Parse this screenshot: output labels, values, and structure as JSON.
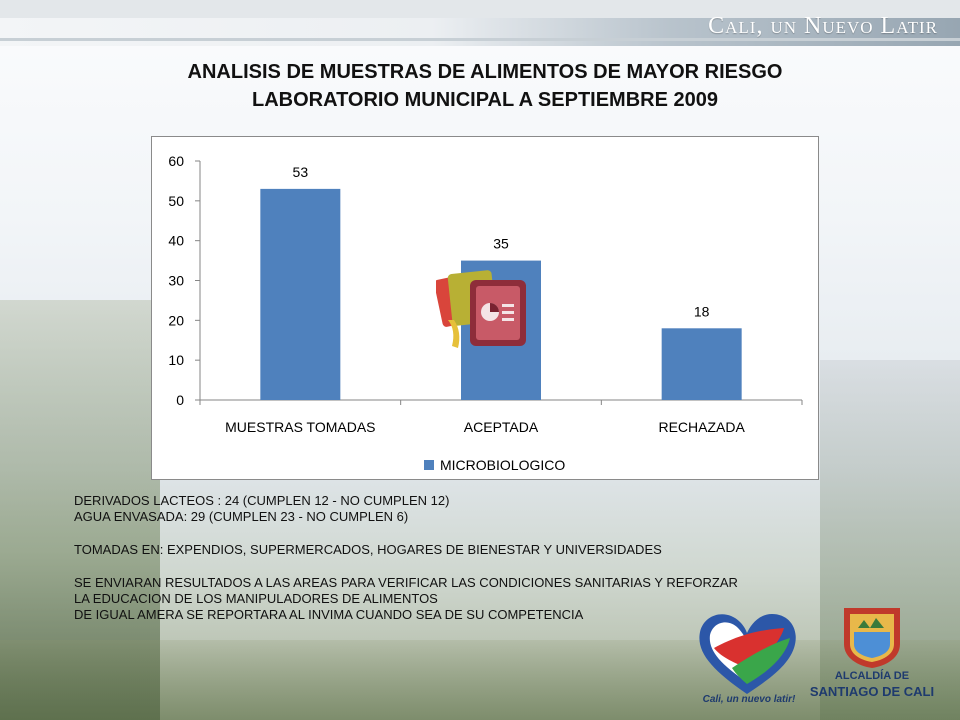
{
  "header": {
    "brand_text": "Cali, un Nuevo Latir"
  },
  "title": {
    "line1": "ANALISIS DE MUESTRAS DE ALIMENTOS DE MAYOR RIESGO",
    "line2": "LABORATORIO MUNICIPAL A SEPTIEMBRE 2009"
  },
  "chart_data": {
    "type": "bar",
    "categories": [
      "MUESTRAS TOMADAS",
      "ACEPTADA",
      "RECHAZADA"
    ],
    "series": [
      {
        "name": "MICROBIOLOGICO",
        "values": [
          53,
          35,
          18
        ],
        "color": "#4f81bd"
      }
    ],
    "ylim": [
      0,
      60
    ],
    "yticks": [
      0,
      10,
      20,
      30,
      40,
      50,
      60
    ],
    "grid": false,
    "legend": "bottom",
    "data_labels": true
  },
  "notes": [
    "DERIVADOS LACTEOS : 24 (CUMPLEN 12 - NO CUMPLEN  12)",
    "AGUA  ENVASADA: 29 (CUMPLEN 23 - NO CUMPLEN  6)",
    "",
    "TOMADAS EN: EXPENDIOS, SUPERMERCADOS, HOGARES DE BIENESTAR Y UNIVERSIDADES",
    "",
    "SE ENVIARAN RESULTADOS A LAS AREAS PARA VERIFICAR LAS CONDICIONES SANITARIAS Y REFORZAR",
    "LA EDUCACION DE LOS MANIPULADORES DE ALIMENTOS",
    "DE IGUAL AMERA SE REPORTARA AL INVIMA CUANDO SEA DE SU COMPETENCIA"
  ],
  "logos": {
    "heart_caption": "Cali, un nuevo latir!",
    "crest_line1": "ALCALDÍA DE",
    "crest_line2": "SANTIAGO DE CALI"
  },
  "colors": {
    "bar": "#4f81bd",
    "title": "#111111",
    "brand": "#ffffff"
  },
  "icons": [
    "powerpoint-icon",
    "heart-logo-icon",
    "crest-icon"
  ]
}
